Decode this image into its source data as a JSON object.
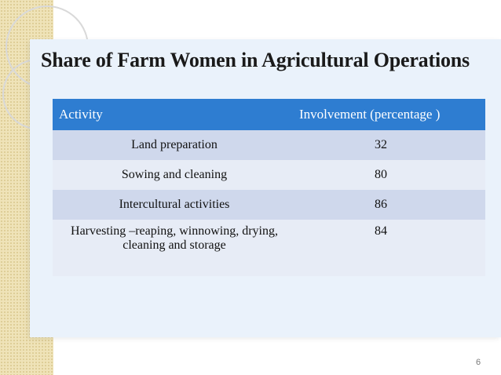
{
  "slide": {
    "title": "Share of Farm Women in Agricultural Operations",
    "page_number": "6"
  },
  "table": {
    "headers": [
      "Activity",
      "Involvement (percentage )"
    ],
    "rows": [
      {
        "activity": "Land preparation",
        "involvement": "32"
      },
      {
        "activity": "Sowing and cleaning",
        "involvement": "80"
      },
      {
        "activity": "Intercultural activities",
        "involvement": "86"
      },
      {
        "activity": "Harvesting –reaping, winnowing, drying, cleaning and storage",
        "involvement": "84"
      }
    ]
  },
  "colors": {
    "header_bg": "#2e7dd1",
    "row_dark": "#cfd8ec",
    "row_light": "#e7ecf6",
    "panel_bg": "#eaf2fb",
    "left_strip": "#efe3b8"
  }
}
